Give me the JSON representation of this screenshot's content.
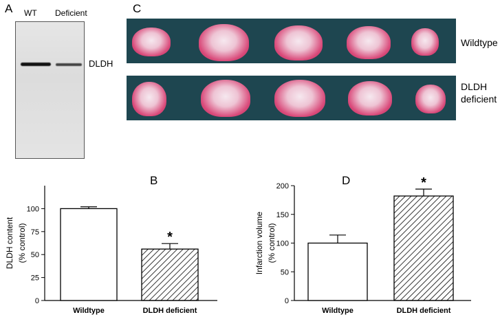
{
  "panels": {
    "A": "A",
    "B": "B",
    "C": "C",
    "D": "D"
  },
  "western_blot": {
    "lanes": [
      "WT",
      "Deficient"
    ],
    "band_label": "DLDH",
    "band_intensity": [
      1.0,
      0.55
    ]
  },
  "brain_slices": {
    "rows": [
      {
        "label_lines": [
          "Wildtype"
        ]
      },
      {
        "label_lines": [
          "DLDH",
          "deficient"
        ]
      }
    ],
    "slices_per_row": 5
  },
  "chart_data": [
    {
      "panel": "B",
      "type": "bar",
      "categories": [
        "Wildtype",
        "DLDH deficient"
      ],
      "values": [
        100,
        56
      ],
      "errors": [
        2,
        6
      ],
      "ylabel_lines": [
        "DLDH content",
        "(% control)"
      ],
      "ylim": [
        0,
        125
      ],
      "yticks": [
        0,
        25,
        50,
        75,
        100
      ],
      "significance": [
        "",
        "*"
      ]
    },
    {
      "panel": "D",
      "type": "bar",
      "categories": [
        "Wildtype",
        "DLDH deficient"
      ],
      "values": [
        100,
        182
      ],
      "errors": [
        14,
        12
      ],
      "ylabel_lines": [
        "Infarction volume",
        "(% control)"
      ],
      "ylim": [
        0,
        200
      ],
      "yticks": [
        0,
        50,
        100,
        150,
        200
      ],
      "significance": [
        "",
        "*"
      ]
    }
  ]
}
